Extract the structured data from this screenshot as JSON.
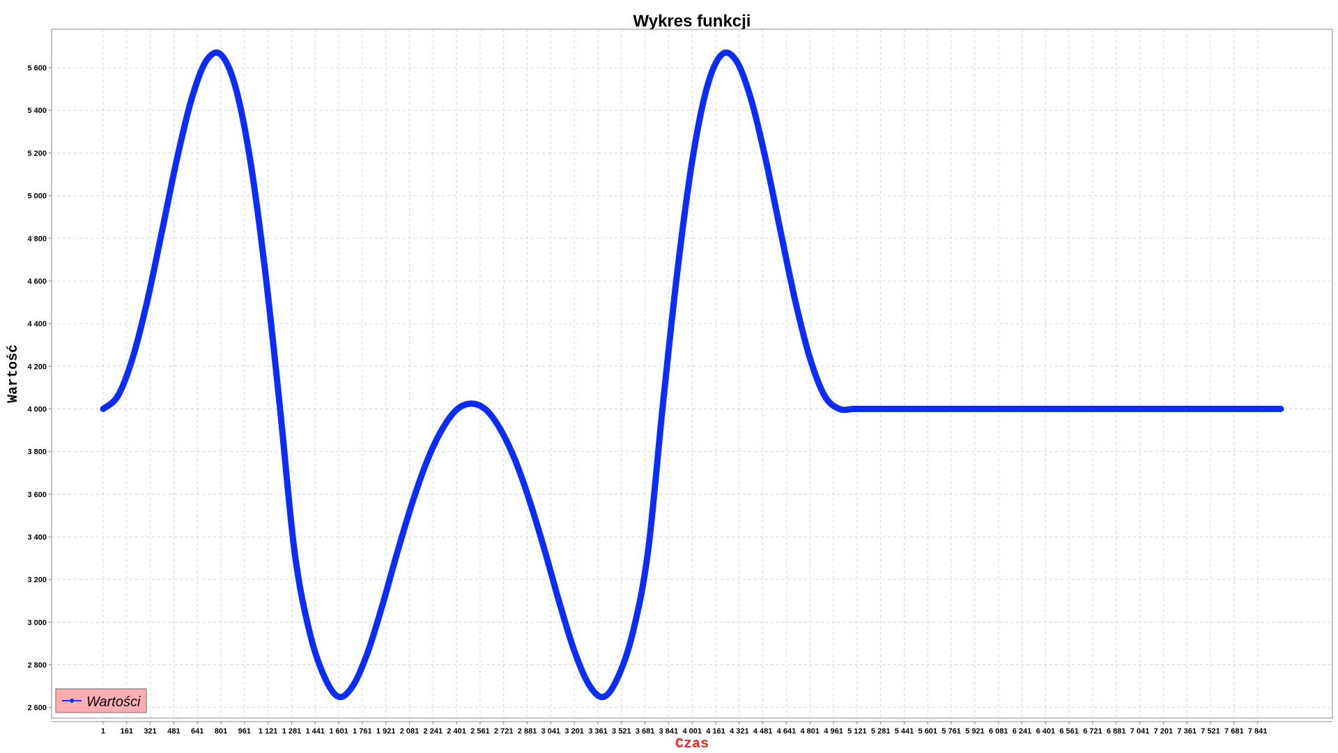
{
  "chart_data": {
    "type": "line",
    "title": "Wykres funkcji",
    "xlabel": "Czas",
    "ylabel": "Wartość",
    "xlim": [
      1,
      7999
    ],
    "ylim": [
      2550,
      5780
    ],
    "grid": true,
    "legend_position": "bottom-left",
    "colors": {
      "series": "#0a2cff",
      "xlabel": "#ff2020",
      "ylabel": "#000000",
      "legend_bg": "#ffadb0",
      "grid": "#d8d8d8"
    },
    "x_ticks": [
      {
        "value": 1,
        "label": "1"
      },
      {
        "value": 161,
        "label": "161"
      },
      {
        "value": 321,
        "label": "321"
      },
      {
        "value": 481,
        "label": "481"
      },
      {
        "value": 641,
        "label": "641"
      },
      {
        "value": 801,
        "label": "801"
      },
      {
        "value": 961,
        "label": "961"
      },
      {
        "value": 1121,
        "label": "1 121"
      },
      {
        "value": 1281,
        "label": "1 281"
      },
      {
        "value": 1441,
        "label": "1 441"
      },
      {
        "value": 1601,
        "label": "1 601"
      },
      {
        "value": 1761,
        "label": "1 761"
      },
      {
        "value": 1921,
        "label": "1 921"
      },
      {
        "value": 2081,
        "label": "2 081"
      },
      {
        "value": 2241,
        "label": "2 241"
      },
      {
        "value": 2401,
        "label": "2 401"
      },
      {
        "value": 2561,
        "label": "2 561"
      },
      {
        "value": 2721,
        "label": "2 721"
      },
      {
        "value": 2881,
        "label": "2 881"
      },
      {
        "value": 3041,
        "label": "3 041"
      },
      {
        "value": 3201,
        "label": "3 201"
      },
      {
        "value": 3361,
        "label": "3 361"
      },
      {
        "value": 3521,
        "label": "3 521"
      },
      {
        "value": 3681,
        "label": "3 681"
      },
      {
        "value": 3841,
        "label": "3 841"
      },
      {
        "value": 4001,
        "label": "4 001"
      },
      {
        "value": 4161,
        "label": "4 161"
      },
      {
        "value": 4321,
        "label": "4 321"
      },
      {
        "value": 4481,
        "label": "4 481"
      },
      {
        "value": 4641,
        "label": "4 641"
      },
      {
        "value": 4801,
        "label": "4 801"
      },
      {
        "value": 4961,
        "label": "4 961"
      },
      {
        "value": 5121,
        "label": "5 121"
      },
      {
        "value": 5281,
        "label": "5 281"
      },
      {
        "value": 5441,
        "label": "5 441"
      },
      {
        "value": 5601,
        "label": "5 601"
      },
      {
        "value": 5761,
        "label": "5 761"
      },
      {
        "value": 5921,
        "label": "5 921"
      },
      {
        "value": 6081,
        "label": "6 081"
      },
      {
        "value": 6241,
        "label": "6 241"
      },
      {
        "value": 6401,
        "label": "6 401"
      },
      {
        "value": 6561,
        "label": "6 561"
      },
      {
        "value": 6721,
        "label": "6 721"
      },
      {
        "value": 6881,
        "label": "6 881"
      },
      {
        "value": 7041,
        "label": "7 041"
      },
      {
        "value": 7201,
        "label": "7 201"
      },
      {
        "value": 7361,
        "label": "7 361"
      },
      {
        "value": 7521,
        "label": "7 521"
      },
      {
        "value": 7681,
        "label": "7 681"
      },
      {
        "value": 7841,
        "label": "7 841"
      }
    ],
    "y_ticks": [
      {
        "value": 2600,
        "label": "2 600"
      },
      {
        "value": 2800,
        "label": "2 800"
      },
      {
        "value": 3000,
        "label": "3 000"
      },
      {
        "value": 3200,
        "label": "3 200"
      },
      {
        "value": 3400,
        "label": "3 400"
      },
      {
        "value": 3600,
        "label": "3 600"
      },
      {
        "value": 3800,
        "label": "3 800"
      },
      {
        "value": 4000,
        "label": "4 000"
      },
      {
        "value": 4200,
        "label": "4 200"
      },
      {
        "value": 4400,
        "label": "4 400"
      },
      {
        "value": 4600,
        "label": "4 600"
      },
      {
        "value": 4800,
        "label": "4 800"
      },
      {
        "value": 5000,
        "label": "5 000"
      },
      {
        "value": 5200,
        "label": "5 200"
      },
      {
        "value": 5400,
        "label": "5 400"
      },
      {
        "value": 5600,
        "label": "5 600"
      }
    ],
    "series": [
      {
        "name": "Wartości",
        "x": [
          1,
          101,
          201,
          301,
          401,
          501,
          601,
          701,
          801,
          901,
          1001,
          1101,
          1201,
          1301,
          1401,
          1501,
          1601,
          1701,
          1801,
          1901,
          2001,
          2101,
          2201,
          2301,
          2401,
          2501,
          2601,
          2701,
          2801,
          2901,
          3001,
          3101,
          3201,
          3301,
          3401,
          3501,
          3601,
          3701,
          3801,
          3901,
          4001,
          4101,
          4201,
          4301,
          4401,
          4501,
          4601,
          4701,
          4801,
          4901,
          5001,
          5101,
          5201,
          5301,
          5401,
          5501,
          5601,
          5701,
          5801,
          5901,
          6001,
          6101,
          6201,
          6301,
          6401,
          6501,
          6601,
          6701,
          6801,
          6901,
          7001,
          7101,
          7201,
          7301,
          7401,
          7501,
          7601,
          7701,
          7801,
          7901,
          7999
        ],
        "y": [
          4000,
          4061,
          4238,
          4507,
          4834,
          5168,
          5452,
          5632,
          5661,
          5506,
          5161,
          4647,
          4011,
          3330,
          2959,
          2748,
          2650,
          2706,
          2865,
          3088,
          3333,
          3561,
          3756,
          3902,
          3996,
          4025,
          3996,
          3902,
          3756,
          3561,
          3333,
          3088,
          2865,
          2706,
          2650,
          2748,
          2959,
          3330,
          4011,
          4647,
          5161,
          5506,
          5661,
          5632,
          5452,
          5168,
          4834,
          4507,
          4238,
          4061,
          4000,
          4000,
          4000,
          4000,
          4000,
          4000,
          4000,
          4000,
          4000,
          4000,
          4000,
          4000,
          4000,
          4000,
          4000,
          4000,
          4000,
          4000,
          4000,
          4000,
          4000,
          4000,
          4000,
          4000,
          4000,
          4000,
          4000,
          4000,
          4000,
          4000,
          4000
        ]
      }
    ]
  }
}
